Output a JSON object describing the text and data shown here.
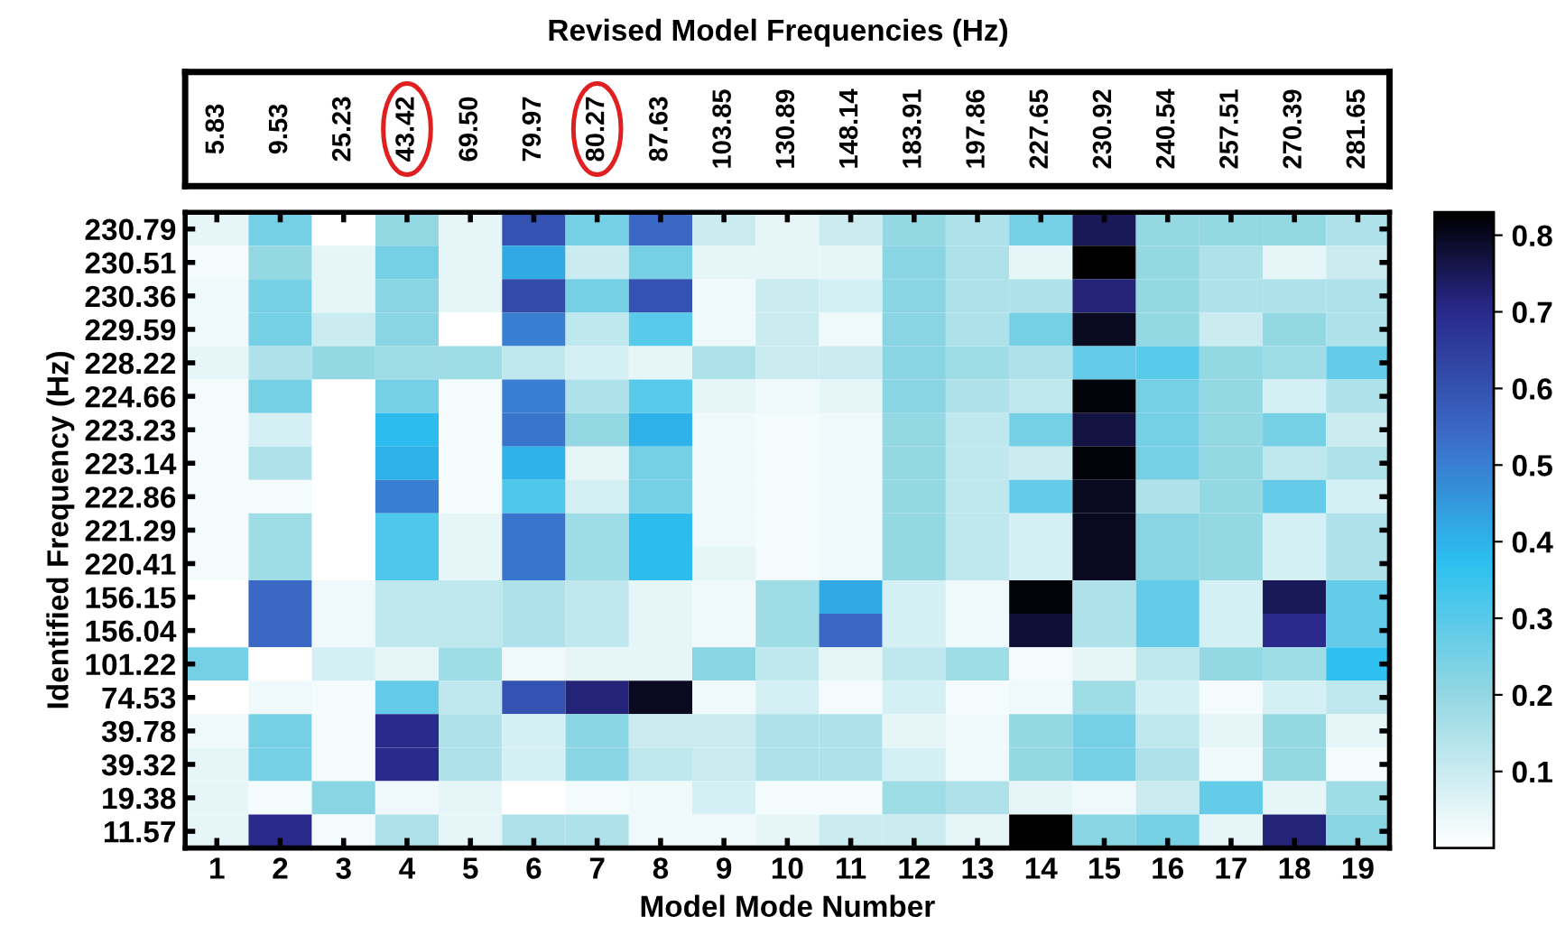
{
  "chart_data": {
    "type": "heatmap",
    "title": "Revised Model Frequencies (Hz)",
    "xlabel": "Model Mode Number",
    "ylabel": "Identified Frequency (Hz)",
    "categories": [
      "1",
      "2",
      "3",
      "4",
      "5",
      "6",
      "7",
      "8",
      "9",
      "10",
      "11",
      "12",
      "13",
      "14",
      "15",
      "16",
      "17",
      "18",
      "19"
    ],
    "y_categories": [
      "230.79",
      "230.51",
      "230.36",
      "229.59",
      "228.22",
      "224.66",
      "223.23",
      "223.14",
      "222.86",
      "221.29",
      "220.41",
      "156.15",
      "156.04",
      "101.22",
      "74.53",
      "39.78",
      "39.32",
      "19.38",
      "11.57"
    ],
    "annotations": [
      "5.83",
      "9.53",
      "25.23",
      "43.42",
      "69.50",
      "79.97",
      "80.27",
      "87.63",
      "103.85",
      "130.89",
      "148.14",
      "183.91",
      "197.86",
      "227.65",
      "230.92",
      "240.54",
      "257.51",
      "270.39",
      "281.65"
    ],
    "cells": [
      [
        0.05,
        0.25,
        0.0,
        0.2,
        0.05,
        0.6,
        0.25,
        0.55,
        0.1,
        0.05,
        0.1,
        0.2,
        0.15,
        0.25,
        0.75,
        0.2,
        0.2,
        0.2,
        0.15
      ],
      [
        0.02,
        0.2,
        0.05,
        0.25,
        0.05,
        0.42,
        0.1,
        0.25,
        0.05,
        0.05,
        0.05,
        0.22,
        0.15,
        0.05,
        0.83,
        0.2,
        0.15,
        0.05,
        0.1
      ],
      [
        0.03,
        0.25,
        0.05,
        0.22,
        0.05,
        0.62,
        0.25,
        0.6,
        0.03,
        0.1,
        0.08,
        0.22,
        0.15,
        0.15,
        0.72,
        0.2,
        0.15,
        0.15,
        0.15
      ],
      [
        0.03,
        0.25,
        0.1,
        0.22,
        0.0,
        0.5,
        0.12,
        0.3,
        0.03,
        0.1,
        0.03,
        0.22,
        0.15,
        0.25,
        0.8,
        0.2,
        0.1,
        0.2,
        0.15
      ],
      [
        0.05,
        0.15,
        0.2,
        0.18,
        0.18,
        0.12,
        0.08,
        0.05,
        0.15,
        0.1,
        0.1,
        0.22,
        0.18,
        0.15,
        0.28,
        0.3,
        0.2,
        0.18,
        0.28
      ],
      [
        0.02,
        0.25,
        0.0,
        0.25,
        0.02,
        0.5,
        0.15,
        0.3,
        0.05,
        0.03,
        0.05,
        0.22,
        0.15,
        0.12,
        0.82,
        0.25,
        0.2,
        0.08,
        0.15
      ],
      [
        0.02,
        0.08,
        0.0,
        0.38,
        0.02,
        0.52,
        0.2,
        0.4,
        0.03,
        0.02,
        0.03,
        0.2,
        0.12,
        0.25,
        0.77,
        0.25,
        0.2,
        0.25,
        0.1
      ],
      [
        0.02,
        0.15,
        0.0,
        0.4,
        0.02,
        0.4,
        0.05,
        0.25,
        0.03,
        0.02,
        0.03,
        0.2,
        0.12,
        0.1,
        0.82,
        0.25,
        0.2,
        0.12,
        0.15
      ],
      [
        0.02,
        0.02,
        0.0,
        0.5,
        0.02,
        0.32,
        0.08,
        0.25,
        0.03,
        0.02,
        0.03,
        0.2,
        0.12,
        0.28,
        0.8,
        0.15,
        0.2,
        0.28,
        0.08
      ],
      [
        0.02,
        0.18,
        0.0,
        0.32,
        0.05,
        0.52,
        0.18,
        0.38,
        0.03,
        0.02,
        0.03,
        0.2,
        0.12,
        0.08,
        0.8,
        0.22,
        0.2,
        0.08,
        0.15
      ],
      [
        0.02,
        0.18,
        0.0,
        0.32,
        0.05,
        0.52,
        0.18,
        0.38,
        0.05,
        0.02,
        0.03,
        0.2,
        0.12,
        0.08,
        0.8,
        0.22,
        0.2,
        0.08,
        0.15
      ],
      [
        0.0,
        0.55,
        0.03,
        0.12,
        0.12,
        0.15,
        0.12,
        0.05,
        0.03,
        0.18,
        0.42,
        0.08,
        0.03,
        0.82,
        0.15,
        0.28,
        0.08,
        0.75,
        0.28
      ],
      [
        0.0,
        0.55,
        0.03,
        0.12,
        0.12,
        0.15,
        0.12,
        0.05,
        0.03,
        0.18,
        0.55,
        0.08,
        0.03,
        0.78,
        0.15,
        0.28,
        0.08,
        0.7,
        0.28
      ],
      [
        0.25,
        0.0,
        0.08,
        0.05,
        0.18,
        0.03,
        0.05,
        0.05,
        0.22,
        0.12,
        0.05,
        0.12,
        0.18,
        0.02,
        0.05,
        0.12,
        0.2,
        0.18,
        0.37
      ],
      [
        0.0,
        0.03,
        0.02,
        0.28,
        0.12,
        0.6,
        0.72,
        0.8,
        0.03,
        0.08,
        0.02,
        0.08,
        0.02,
        0.03,
        0.18,
        0.08,
        0.02,
        0.08,
        0.12
      ],
      [
        0.03,
        0.25,
        0.02,
        0.7,
        0.15,
        0.08,
        0.22,
        0.1,
        0.1,
        0.15,
        0.15,
        0.05,
        0.03,
        0.2,
        0.25,
        0.12,
        0.05,
        0.2,
        0.05
      ],
      [
        0.05,
        0.25,
        0.02,
        0.7,
        0.15,
        0.08,
        0.22,
        0.12,
        0.1,
        0.15,
        0.15,
        0.08,
        0.03,
        0.2,
        0.25,
        0.15,
        0.03,
        0.2,
        0.02
      ],
      [
        0.05,
        0.02,
        0.22,
        0.03,
        0.05,
        0.0,
        0.02,
        0.03,
        0.08,
        0.02,
        0.02,
        0.18,
        0.15,
        0.05,
        0.03,
        0.1,
        0.28,
        0.05,
        0.18
      ],
      [
        0.05,
        0.7,
        0.02,
        0.15,
        0.05,
        0.15,
        0.15,
        0.03,
        0.03,
        0.05,
        0.1,
        0.1,
        0.05,
        0.83,
        0.22,
        0.25,
        0.05,
        0.72,
        0.22
      ]
    ],
    "clim": [
      0,
      0.83
    ],
    "cticks": [
      0.1,
      0.2,
      0.3,
      0.4,
      0.5,
      0.6,
      0.7,
      0.8
    ]
  }
}
